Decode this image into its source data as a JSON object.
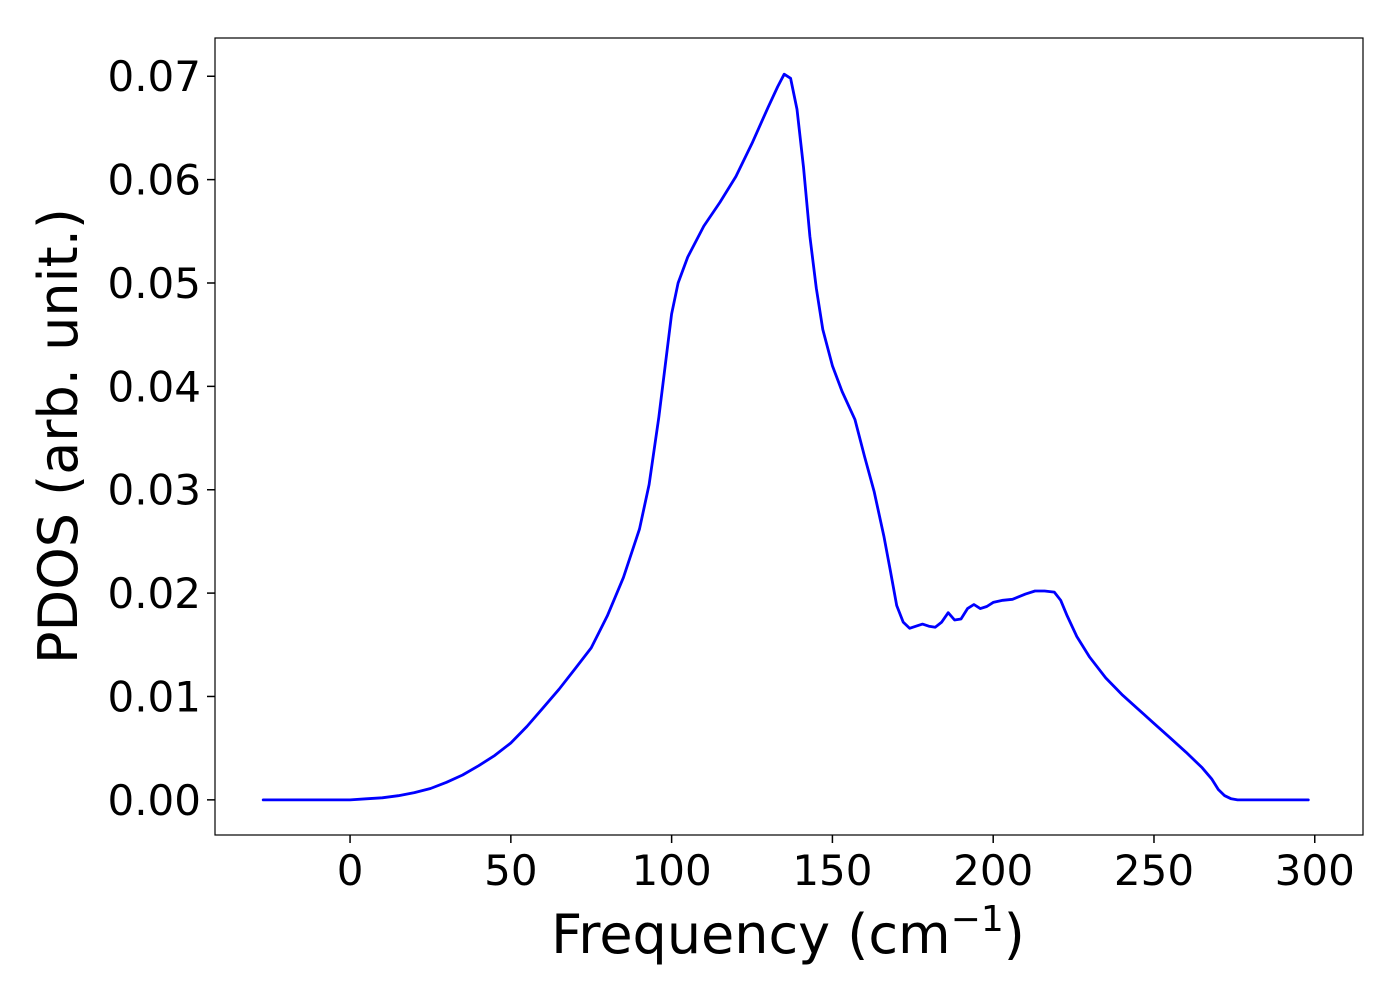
{
  "chart_data": {
    "type": "line",
    "title": "",
    "xlabel": "Frequency (cm",
    "xlabel_sup": "−1",
    "xlabel_close": ")",
    "ylabel": "PDOS (arb. unit.)",
    "xlim": [
      -42,
      315
    ],
    "ylim": [
      -0.0034,
      0.0737
    ],
    "xticks": [
      0,
      50,
      100,
      150,
      200,
      250,
      300
    ],
    "xtick_labels": [
      "0",
      "50",
      "100",
      "150",
      "200",
      "250",
      "300"
    ],
    "yticks": [
      0.0,
      0.01,
      0.02,
      0.03,
      0.04,
      0.05,
      0.06,
      0.07
    ],
    "ytick_labels": [
      "0.00",
      "0.01",
      "0.02",
      "0.03",
      "0.04",
      "0.05",
      "0.06",
      "0.07"
    ],
    "grid": false,
    "legend": false,
    "series": [
      {
        "color": "#0000ff",
        "x": [
          -27,
          -10,
          0,
          5,
          10,
          15,
          20,
          25,
          30,
          35,
          40,
          45,
          50,
          55,
          60,
          65,
          70,
          75,
          80,
          85,
          90,
          93,
          96,
          98,
          100,
          102,
          105,
          110,
          115,
          120,
          125,
          130,
          133,
          135,
          137,
          139,
          141,
          143,
          145,
          147,
          150,
          153,
          157,
          160,
          163,
          166,
          168,
          170,
          172,
          174,
          176,
          178,
          180,
          182,
          184,
          186,
          188,
          190,
          192,
          194,
          196,
          198,
          200,
          203,
          206,
          210,
          213,
          216,
          219,
          221,
          223,
          226,
          230,
          235,
          240,
          245,
          250,
          255,
          260,
          265,
          268,
          270,
          272,
          274,
          276,
          280,
          290,
          298
        ],
        "y": [
          0.0,
          0.0,
          0.0,
          0.0001,
          0.0002,
          0.0004,
          0.0007,
          0.0011,
          0.0017,
          0.0024,
          0.0033,
          0.0043,
          0.0055,
          0.0071,
          0.0089,
          0.0107,
          0.0127,
          0.0147,
          0.0178,
          0.0215,
          0.0262,
          0.0305,
          0.037,
          0.042,
          0.047,
          0.05,
          0.0525,
          0.0555,
          0.0578,
          0.0603,
          0.0635,
          0.067,
          0.069,
          0.0702,
          0.0698,
          0.0668,
          0.0612,
          0.0545,
          0.0495,
          0.0455,
          0.042,
          0.0395,
          0.0368,
          0.0332,
          0.0298,
          0.0255,
          0.0222,
          0.0188,
          0.0172,
          0.0166,
          0.0168,
          0.017,
          0.0168,
          0.0167,
          0.0172,
          0.0181,
          0.0174,
          0.0175,
          0.0185,
          0.0189,
          0.0185,
          0.0187,
          0.0191,
          0.0193,
          0.0194,
          0.0199,
          0.0202,
          0.0202,
          0.0201,
          0.0193,
          0.0178,
          0.0158,
          0.0138,
          0.0118,
          0.0102,
          0.0088,
          0.0074,
          0.006,
          0.0046,
          0.0031,
          0.002,
          0.001,
          0.0004,
          0.0001,
          0.0,
          0.0,
          0.0,
          0.0
        ]
      }
    ]
  }
}
